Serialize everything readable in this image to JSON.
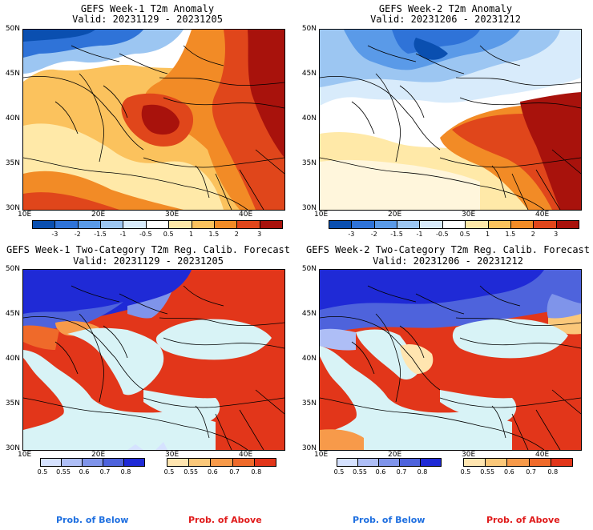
{
  "panels": [
    {
      "title1": "GEFS Week-1 T2m Anomaly",
      "title2": "Valid: 20231129 - 20231205"
    },
    {
      "title1": "GEFS Week-2 T2m Anomaly",
      "title2": "Valid: 20231206 - 20231212"
    },
    {
      "title1": "GEFS Week-1 Two-Category T2m Reg. Calib. Forecast",
      "title2": "Valid: 20231129 - 20231205"
    },
    {
      "title1": "GEFS Week-2 Two-Category T2m Reg. Calib. Forecast",
      "title2": "Valid: 20231206 - 20231212"
    }
  ],
  "lat_labels": [
    "50N",
    "45N",
    "40N",
    "35N",
    "30N"
  ],
  "lon_labels": [
    "10E",
    "20E",
    "30E",
    "40E"
  ],
  "anomaly_colorbar": {
    "labels": [
      "-3",
      "-2",
      "-1.5",
      "-1",
      "-0.5",
      "0.5",
      "1",
      "1.5",
      "2",
      "3"
    ],
    "colors": [
      "#0a4fb0",
      "#2f73d8",
      "#5a9ae8",
      "#9cc6f2",
      "#d8ebfb",
      "#ffffff",
      "#ffe9a8",
      "#fbc25d",
      "#f28b26",
      "#e0461b",
      "#a8120c"
    ]
  },
  "below_colorbar": {
    "labels": [
      "0.5",
      "0.55",
      "0.6",
      "0.7",
      "0.8"
    ],
    "colors": [
      "#d6e2ff",
      "#aebef6",
      "#7f94ea",
      "#4e63dc",
      "#1f2ad6"
    ]
  },
  "above_colorbar": {
    "labels": [
      "0.5",
      "0.55",
      "0.6",
      "0.7",
      "0.8"
    ],
    "colors": [
      "#ffe5b0",
      "#fbc87a",
      "#f79a4a",
      "#ef6a2a",
      "#e2361a"
    ]
  },
  "footer": {
    "below": "Prob. of Below",
    "above": "Prob. of Above"
  },
  "colors": {
    "below_text": "#1e6fe0",
    "above_text": "#e01b1b",
    "sea": "#d8f3f6"
  }
}
